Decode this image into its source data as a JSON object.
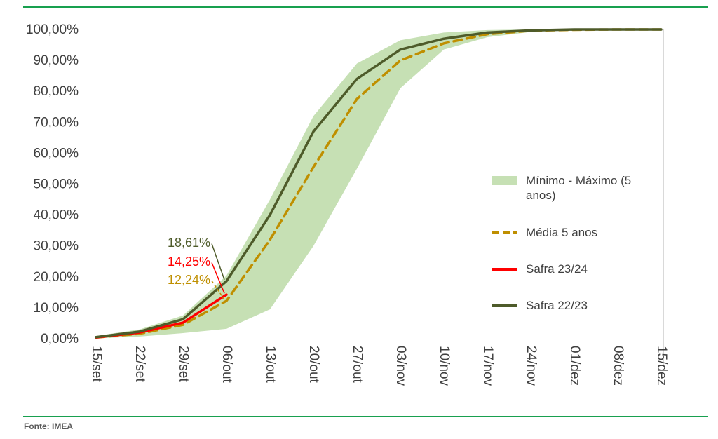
{
  "chart_data": {
    "type": "line",
    "title": "",
    "xlabel": "",
    "ylabel": "",
    "grid": false,
    "legend_position": "right-center",
    "ylim": [
      0,
      100
    ],
    "categories": [
      "15/set",
      "22/set",
      "29/set",
      "06/out",
      "13/out",
      "20/out",
      "27/out",
      "03/nov",
      "10/nov",
      "17/nov",
      "24/nov",
      "01/dez",
      "08/dez",
      "15/dez"
    ],
    "y_ticks": [
      "0,00%",
      "10,00%",
      "20,00%",
      "30,00%",
      "40,00%",
      "50,00%",
      "60,00%",
      "70,00%",
      "80,00%",
      "90,00%",
      "100,00%"
    ],
    "band": {
      "name": "Mínimo - Máximo (5 anos)",
      "color": "#c6e0b4",
      "min": [
        0.1,
        0.7,
        1.8,
        3.2,
        9.5,
        30,
        55,
        81,
        93.5,
        97.5,
        99.2,
        99.9,
        100,
        100
      ],
      "max": [
        0.9,
        3.0,
        7.5,
        20.4,
        45,
        72,
        89,
        96.5,
        99,
        99.8,
        100,
        100,
        100,
        100
      ]
    },
    "series": [
      {
        "name": "Média 5 anos",
        "color": "#bf8f00",
        "style": "dashed",
        "values": [
          0.4,
          1.6,
          4.5,
          12.24,
          32,
          55.5,
          77.5,
          90,
          95.5,
          98.5,
          99.6,
          99.9,
          100,
          100
        ]
      },
      {
        "name": "Safra 23/24",
        "color": "#ff0000",
        "style": "solid",
        "values": [
          0.4,
          2.0,
          5.2,
          14.25,
          null,
          null,
          null,
          null,
          null,
          null,
          null,
          null,
          null,
          null
        ]
      },
      {
        "name": "Safra 22/23",
        "color": "#4e5b2a",
        "style": "solid",
        "values": [
          0.5,
          2.3,
          6.3,
          18.61,
          40,
          67,
          84,
          93.5,
          97,
          99,
          99.7,
          100,
          100,
          100
        ]
      }
    ],
    "annotations": [
      {
        "label": "18,61%",
        "value": 18.61,
        "x_index": 3,
        "series": "Safra 22/23",
        "color": "#4e5b2a",
        "leader": "solid"
      },
      {
        "label": "14,25%",
        "value": 14.25,
        "x_index": 3,
        "series": "Safra 23/24",
        "color": "#ff0000",
        "leader": "solid"
      },
      {
        "label": "12,24%",
        "value": 12.24,
        "x_index": 3,
        "series": "Média 5 anos",
        "color": "#bf8f00",
        "leader": "dashed"
      }
    ],
    "legend": [
      {
        "label": "Mínimo - Máximo (5 anos)",
        "swatch": "band",
        "color": "#c6e0b4"
      },
      {
        "label": "Média 5 anos",
        "swatch": "dashed-line",
        "color": "#bf8f00"
      },
      {
        "label": "Safra 23/24",
        "swatch": "line",
        "color": "#ff0000"
      },
      {
        "label": "Safra 22/23",
        "swatch": "line",
        "color": "#4e5b2a"
      }
    ]
  },
  "footer": {
    "source": "Fonte: IMEA"
  },
  "accents": {
    "rule_green": "#18a04f",
    "axis_line": "#bfbfbf",
    "axis_text": "#404040",
    "border_gray": "#bfbfbf"
  }
}
